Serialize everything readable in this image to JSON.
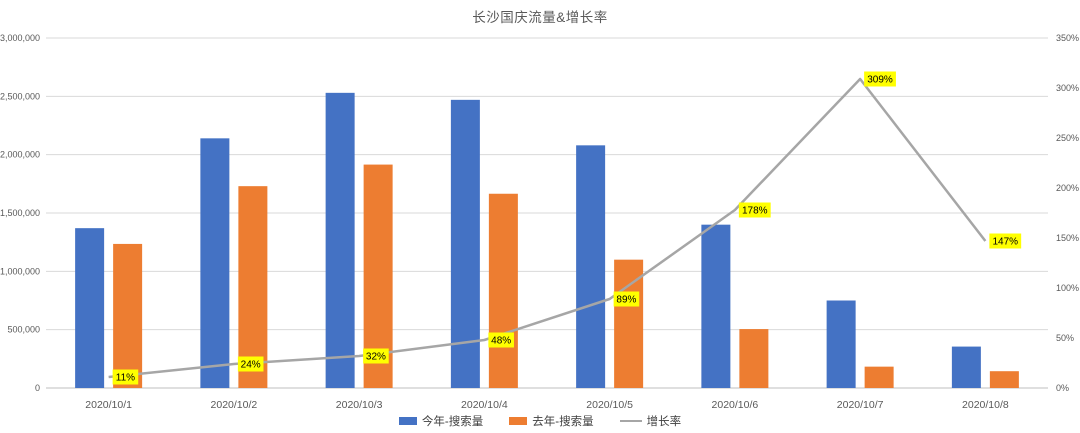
{
  "chart_data": {
    "type": "bar",
    "subtype": "combo-bar-line",
    "title": "长沙国庆流量&增长率",
    "categories": [
      "2020/10/1",
      "2020/10/2",
      "2020/10/3",
      "2020/10/4",
      "2020/10/5",
      "2020/10/6",
      "2020/10/7",
      "2020/10/8"
    ],
    "series": [
      {
        "name": "今年-搜索量",
        "type": "bar",
        "axis": "left",
        "color": "#4472C4",
        "values": [
          1370000,
          2140000,
          2530000,
          2470000,
          2080000,
          1400000,
          750000,
          355000
        ]
      },
      {
        "name": "去年-搜索量",
        "type": "bar",
        "axis": "left",
        "color": "#ED7D31",
        "values": [
          1235000,
          1730000,
          1915000,
          1665000,
          1100000,
          505000,
          183000,
          144000
        ]
      },
      {
        "name": "增长率",
        "type": "line",
        "axis": "right",
        "color": "#A6A6A6",
        "values": [
          11,
          24,
          32,
          48,
          89,
          178,
          309,
          147
        ],
        "labels": [
          "11%",
          "24%",
          "32%",
          "48%",
          "89%",
          "178%",
          "309%",
          "147%"
        ],
        "label_bg": "#FFFF00",
        "label_color": "#000000"
      }
    ],
    "left_axis": {
      "min": 0,
      "max": 3000000,
      "step": 500000,
      "tick_labels": [
        "0",
        "500,000",
        "1,000,000",
        "1,500,000",
        "2,000,000",
        "2,500,000",
        "3,000,000"
      ]
    },
    "right_axis": {
      "min": 0,
      "max": 350,
      "step": 50,
      "tick_labels": [
        "0%",
        "50%",
        "100%",
        "150%",
        "200%",
        "250%",
        "300%",
        "350%"
      ]
    },
    "legend_position": "bottom",
    "grid": true,
    "colors": {
      "grid": "#D9D9D9",
      "baseline": "#BFBFBF",
      "axis_text": "#595959",
      "title_text": "#595959"
    }
  }
}
